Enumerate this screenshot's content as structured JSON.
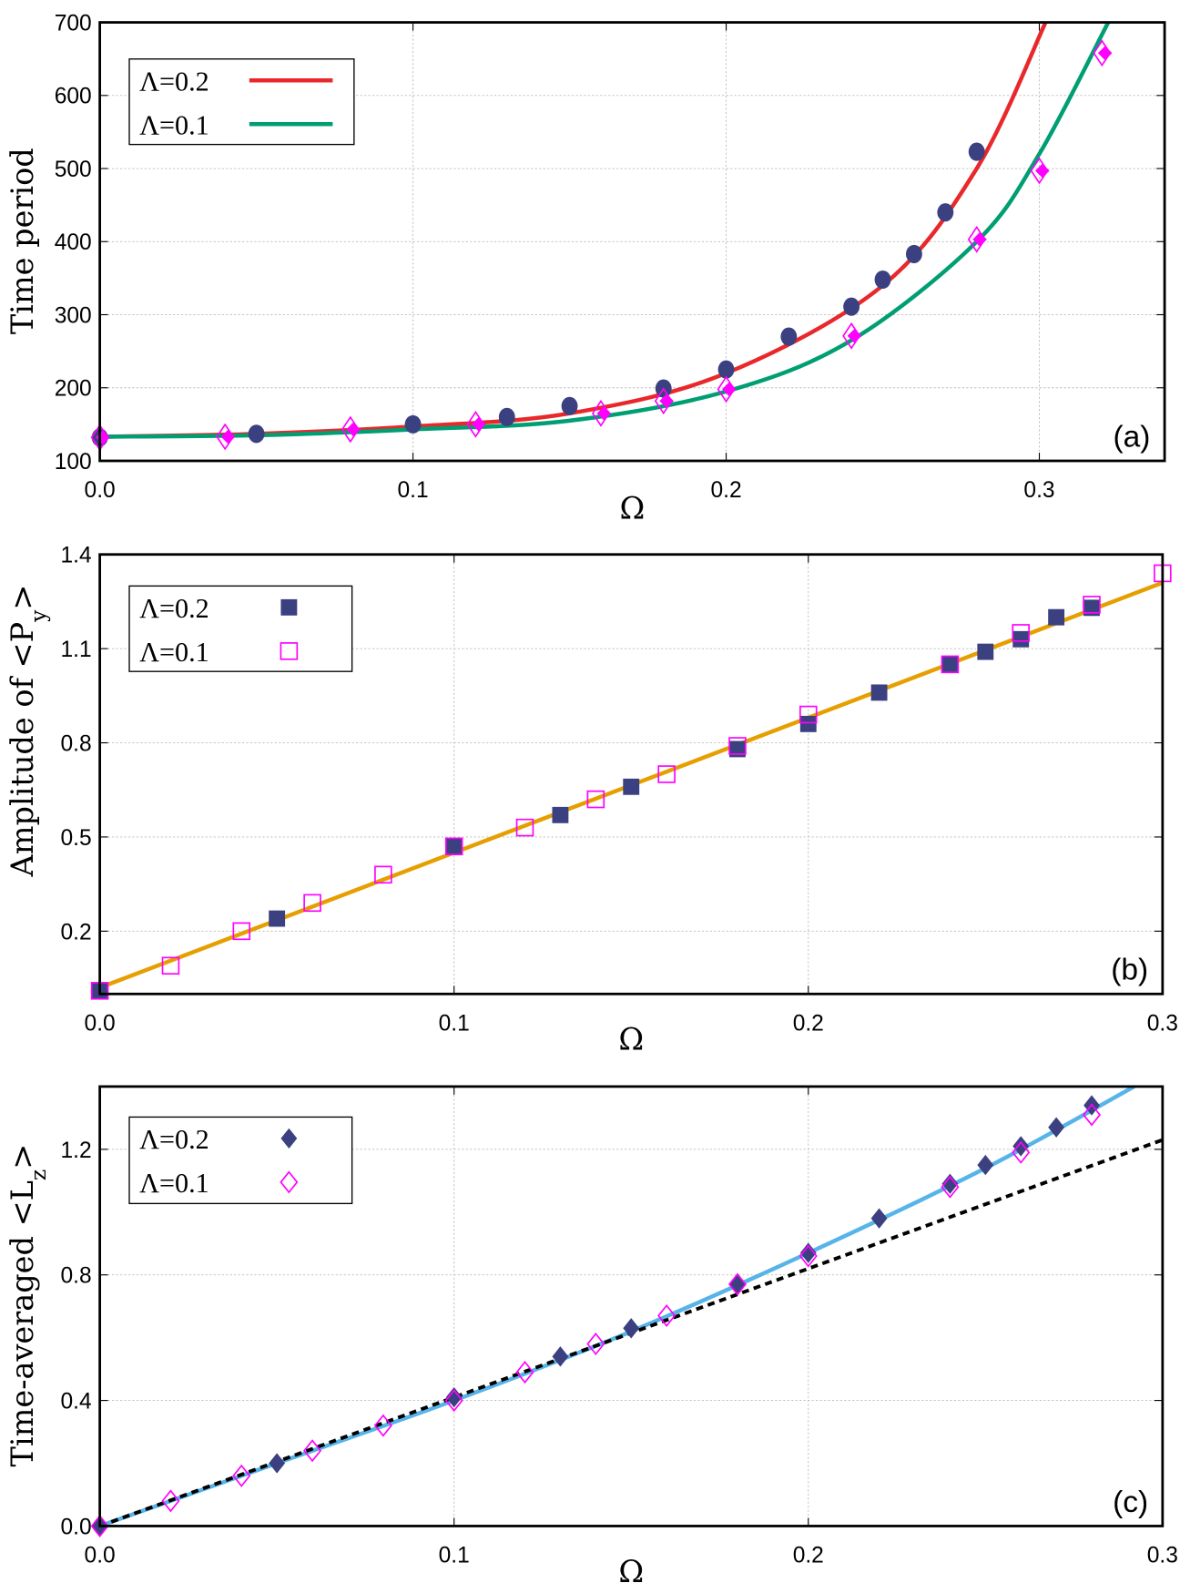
{
  "chart_data": [
    {
      "panel": "(a)",
      "type": "scatter",
      "xlabel": "Ω",
      "ylabel": "Time period",
      "xlim": [
        0,
        0.34
      ],
      "ylim": [
        100,
        700
      ],
      "xticks": [
        "0.0",
        "0.1",
        "0.2",
        "0.3"
      ],
      "xtick_values": [
        0,
        0.1,
        0.2,
        0.3
      ],
      "yticks": [
        "100",
        "200",
        "300",
        "400",
        "500",
        "600",
        "700"
      ],
      "ytick_values": [
        100,
        200,
        300,
        400,
        500,
        600,
        700
      ],
      "grid": true,
      "legend_placement": "top-left",
      "series": [
        {
          "name": "Λ=0.2",
          "kind": "line",
          "color": "#e8282b",
          "x": [
            0,
            0.05,
            0.1,
            0.15,
            0.2,
            0.25,
            0.28,
            0.302
          ],
          "y": [
            133,
            137,
            147,
            165,
            220,
            340,
            500,
            700
          ]
        },
        {
          "name": "Λ=0.1",
          "kind": "line",
          "color": "#009e73",
          "x": [
            0,
            0.05,
            0.1,
            0.15,
            0.2,
            0.24,
            0.28,
            0.3,
            0.322
          ],
          "y": [
            133,
            135,
            143,
            155,
            195,
            265,
            400,
            520,
            700
          ]
        },
        {
          "kind": "points",
          "marker": "circle",
          "color": "#3b4180",
          "x": [
            0,
            0.05,
            0.1,
            0.13,
            0.15,
            0.18,
            0.2,
            0.22,
            0.24,
            0.25,
            0.26,
            0.27,
            0.28
          ],
          "y": [
            132,
            137,
            150,
            160,
            175,
            199,
            225,
            270,
            311,
            348,
            383,
            440,
            523
          ]
        },
        {
          "kind": "points",
          "marker": "diamond-both",
          "color": "#ff00ff",
          "x": [
            0,
            0.04,
            0.08,
            0.12,
            0.16,
            0.18,
            0.2,
            0.24,
            0.28,
            0.3,
            0.32
          ],
          "y": [
            132,
            133,
            143,
            150,
            165,
            182,
            198,
            271,
            403,
            497,
            658
          ]
        }
      ]
    },
    {
      "panel": "(b)",
      "type": "scatter",
      "xlabel": "Ω",
      "ylabel": "Amplitude of <P",
      "ylabel_sub": "y",
      "ylabel_end": ">",
      "xlim": [
        0,
        0.3
      ],
      "ylim": [
        0,
        1.4
      ],
      "xticks": [
        "0.0",
        "0.1",
        "0.2",
        "0.3"
      ],
      "xtick_values": [
        0,
        0.1,
        0.2,
        0.3
      ],
      "yticks": [
        "0.2",
        "0.5",
        "0.8",
        "1.1",
        "1.4"
      ],
      "ytick_values": [
        0.2,
        0.5,
        0.8,
        1.1,
        1.4
      ],
      "grid": true,
      "legend_placement": "top-left",
      "series": [
        {
          "kind": "line",
          "color": "#e69f00",
          "x": [
            0,
            0.3
          ],
          "y": [
            0.02,
            1.31
          ]
        },
        {
          "name": "Λ=0.2",
          "kind": "points",
          "marker": "square-filled",
          "color": "#3b4180",
          "x": [
            0,
            0.05,
            0.1,
            0.13,
            0.15,
            0.18,
            0.2,
            0.22,
            0.24,
            0.25,
            0.26,
            0.27,
            0.28
          ],
          "y": [
            0.01,
            0.24,
            0.47,
            0.57,
            0.66,
            0.78,
            0.86,
            0.96,
            1.05,
            1.09,
            1.13,
            1.2,
            1.23
          ]
        },
        {
          "name": "Λ=0.1",
          "kind": "points",
          "marker": "square-open",
          "color": "#ff00ff",
          "x": [
            0,
            0.02,
            0.04,
            0.06,
            0.08,
            0.1,
            0.12,
            0.14,
            0.16,
            0.18,
            0.2,
            0.24,
            0.26,
            0.28,
            0.3
          ],
          "y": [
            0.01,
            0.09,
            0.2,
            0.29,
            0.38,
            0.47,
            0.53,
            0.62,
            0.7,
            0.79,
            0.89,
            1.05,
            1.15,
            1.24,
            1.34
          ]
        }
      ]
    },
    {
      "panel": "(c)",
      "type": "scatter",
      "xlabel": "Ω",
      "ylabel": "Time-averaged <L",
      "ylabel_sub": "z",
      "ylabel_end": ">",
      "xlim": [
        0,
        0.3
      ],
      "ylim": [
        0,
        1.4
      ],
      "xticks": [
        "0.0",
        "0.1",
        "0.2",
        "0.3"
      ],
      "xtick_values": [
        0,
        0.1,
        0.2,
        0.3
      ],
      "yticks": [
        "0.0",
        "0.4",
        "0.8",
        "1.2"
      ],
      "ytick_values": [
        0,
        0.4,
        0.8,
        1.2
      ],
      "grid": true,
      "legend_placement": "top-left",
      "series": [
        {
          "kind": "line",
          "color": "#56b4e9",
          "x": [
            0,
            0.05,
            0.1,
            0.15,
            0.2,
            0.25,
            0.292
          ],
          "y": [
            0,
            0.2,
            0.4,
            0.62,
            0.87,
            1.14,
            1.4
          ]
        },
        {
          "kind": "dashed-line",
          "color": "#000000",
          "x": [
            0,
            0.3
          ],
          "y": [
            0,
            1.23
          ]
        },
        {
          "name": "Λ=0.2",
          "kind": "points",
          "marker": "diamond-filled",
          "color": "#3b4180",
          "x": [
            0,
            0.05,
            0.1,
            0.13,
            0.15,
            0.18,
            0.2,
            0.22,
            0.24,
            0.25,
            0.26,
            0.27,
            0.28
          ],
          "y": [
            0,
            0.2,
            0.41,
            0.54,
            0.63,
            0.77,
            0.87,
            0.98,
            1.09,
            1.15,
            1.21,
            1.27,
            1.34
          ]
        },
        {
          "name": "Λ=0.1",
          "kind": "points",
          "marker": "diamond-open",
          "color": "#ff00ff",
          "x": [
            0,
            0.02,
            0.04,
            0.06,
            0.08,
            0.1,
            0.12,
            0.14,
            0.16,
            0.18,
            0.2,
            0.24,
            0.26,
            0.28
          ],
          "y": [
            0,
            0.08,
            0.16,
            0.24,
            0.32,
            0.4,
            0.49,
            0.58,
            0.67,
            0.77,
            0.86,
            1.08,
            1.19,
            1.31
          ]
        }
      ]
    }
  ]
}
